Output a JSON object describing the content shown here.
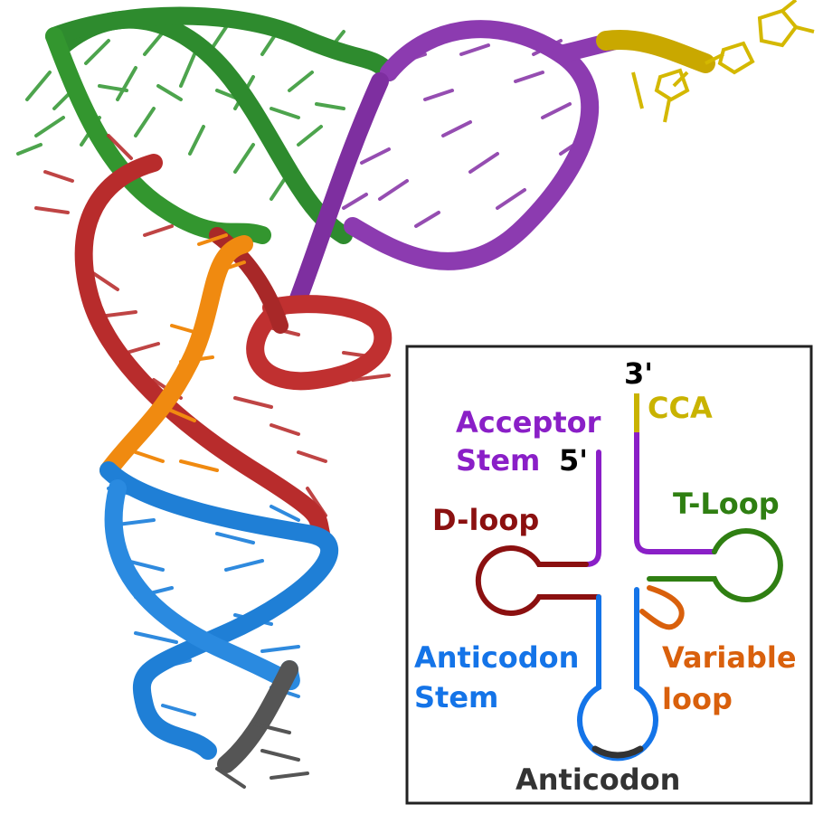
{
  "labels": {
    "three_prime": "3'",
    "cca": "CCA",
    "acceptor_line1": "Acceptor",
    "acceptor_line2": "Stem",
    "five_prime": "5'",
    "t_loop": "T-Loop",
    "d_loop": "D-loop",
    "anticodon_stem_line1": "Anticodon",
    "anticodon_stem_line2": "Stem",
    "variable_line1": "Variable",
    "variable_line2": "loop",
    "anticodon": "Anticodon"
  },
  "colors": {
    "acceptor": "#8a1fc7",
    "cca": "#c9b300",
    "t_loop": "#2f7f12",
    "d_loop": "#8b1010",
    "variable": "#d9600c",
    "anticodon_stem": "#1474e8",
    "anticodon": "#333333",
    "ends": "#000000",
    "model_green": "#3a9a3a",
    "model_purple": "#8a3aa8",
    "model_yellow": "#d4b800",
    "model_red": "#b83030",
    "model_orange": "#f08a10",
    "model_blue": "#2484dc",
    "model_gray": "#555555"
  }
}
